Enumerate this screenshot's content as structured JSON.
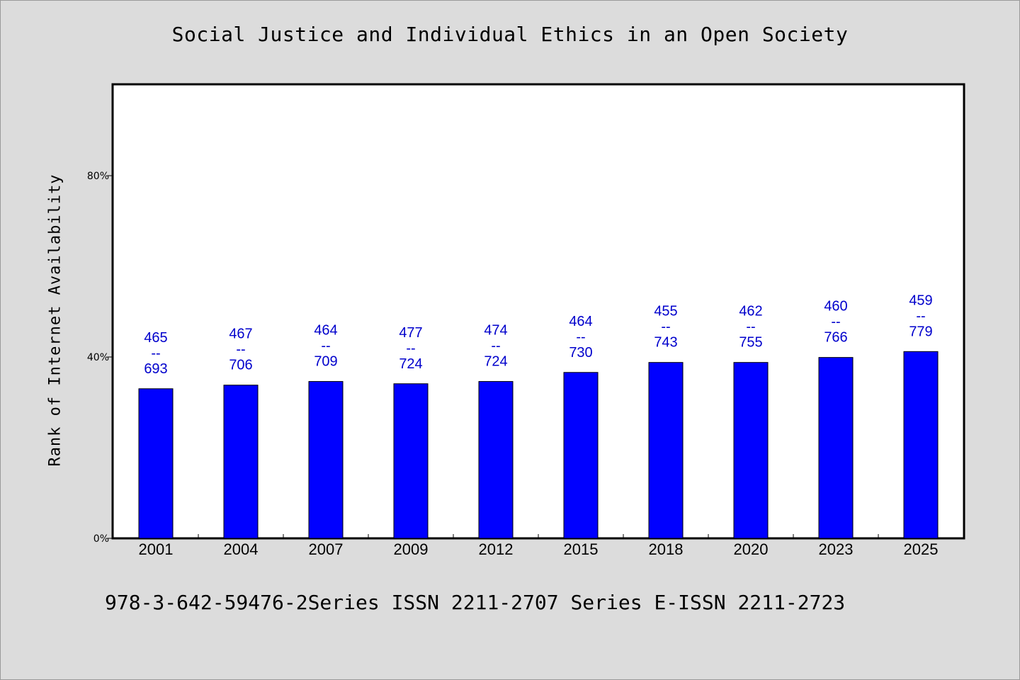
{
  "chart_data": {
    "type": "bar",
    "title": "Social Justice and Individual Ethics in an Open Society",
    "ylabel": "Rank of Internet Availability",
    "xlabel": "",
    "categories": [
      "2001",
      "2004",
      "2007",
      "2009",
      "2012",
      "2015",
      "2018",
      "2020",
      "2023",
      "2025"
    ],
    "values": [
      33,
      33.8,
      34.6,
      34.1,
      34.6,
      36.6,
      38.8,
      38.8,
      39.9,
      41.2
    ],
    "data_labels": [
      {
        "top": "465",
        "sep": "--",
        "bottom": "693"
      },
      {
        "top": "467",
        "sep": "--",
        "bottom": "706"
      },
      {
        "top": "464",
        "sep": "--",
        "bottom": "709"
      },
      {
        "top": "477",
        "sep": "--",
        "bottom": "724"
      },
      {
        "top": "474",
        "sep": "--",
        "bottom": "724"
      },
      {
        "top": "464",
        "sep": "--",
        "bottom": "730"
      },
      {
        "top": "455",
        "sep": "--",
        "bottom": "743"
      },
      {
        "top": "462",
        "sep": "--",
        "bottom": "755"
      },
      {
        "top": "460",
        "sep": "--",
        "bottom": "766"
      },
      {
        "top": "459",
        "sep": "--",
        "bottom": "779"
      }
    ],
    "ylim": [
      0,
      100
    ],
    "yticks": [
      0,
      40,
      80
    ],
    "ytick_labels": [
      "0%",
      "40%",
      "80%"
    ],
    "grid": false,
    "legend": "none",
    "bar_color": "#0000ff",
    "label_color": "#0000cc"
  },
  "footer": "978-3-642-59476-2Series ISSN 2211-2707 Series E-ISSN 2211-2723"
}
